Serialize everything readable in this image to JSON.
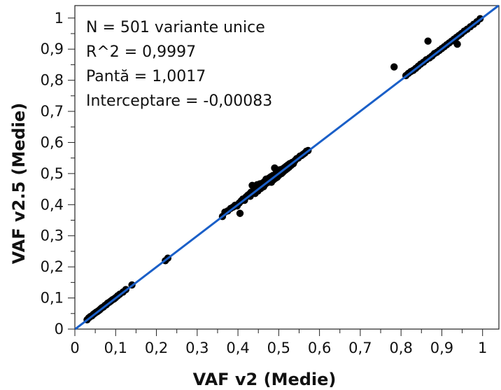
{
  "chart_data": {
    "type": "scatter",
    "xlabel": "VAF v2 (Medie)",
    "ylabel": "VAF v2.5 (Medie)",
    "xlim": [
      0,
      1.04
    ],
    "ylim": [
      0,
      1.04
    ],
    "x_ticks": [
      "0",
      "0,1",
      "0,2",
      "0,3",
      "0,4",
      "0,5",
      "0,6",
      "0,7",
      "0,8",
      "0,9",
      "1"
    ],
    "y_ticks": [
      "0",
      "0,1",
      "0,2",
      "0,3",
      "0,4",
      "0,5",
      "0,6",
      "0,7",
      "0,8",
      "0,9",
      "1"
    ],
    "grid": false,
    "annotations": [
      "N = 501 variante unice",
      "R^2 = 0,9997",
      "Pantă = 1,0017",
      "Interceptare = -0,00083"
    ],
    "fit_line": {
      "slope": 1.0017,
      "intercept": -0.00083,
      "color": "#1a5fc8"
    },
    "point_color": "#000000",
    "series": [
      {
        "points": [
          [
            0.03,
            0.03
          ],
          [
            0.034,
            0.036
          ],
          [
            0.038,
            0.04
          ],
          [
            0.042,
            0.043
          ],
          [
            0.045,
            0.047
          ],
          [
            0.048,
            0.05
          ],
          [
            0.052,
            0.054
          ],
          [
            0.055,
            0.056
          ],
          [
            0.058,
            0.059
          ],
          [
            0.061,
            0.062
          ],
          [
            0.064,
            0.066
          ],
          [
            0.067,
            0.069
          ],
          [
            0.07,
            0.071
          ],
          [
            0.074,
            0.076
          ],
          [
            0.077,
            0.078
          ],
          [
            0.08,
            0.083
          ],
          [
            0.084,
            0.086
          ],
          [
            0.088,
            0.09
          ],
          [
            0.092,
            0.094
          ],
          [
            0.096,
            0.097
          ],
          [
            0.1,
            0.101
          ],
          [
            0.105,
            0.107
          ],
          [
            0.11,
            0.112
          ],
          [
            0.118,
            0.119
          ],
          [
            0.125,
            0.127
          ],
          [
            0.14,
            0.142
          ],
          [
            0.222,
            0.22
          ],
          [
            0.228,
            0.228
          ],
          [
            0.362,
            0.362
          ],
          [
            0.368,
            0.376
          ],
          [
            0.375,
            0.38
          ],
          [
            0.382,
            0.388
          ],
          [
            0.388,
            0.392
          ],
          [
            0.393,
            0.398
          ],
          [
            0.398,
            0.396
          ],
          [
            0.403,
            0.405
          ],
          [
            0.405,
            0.372
          ],
          [
            0.408,
            0.412
          ],
          [
            0.412,
            0.418
          ],
          [
            0.416,
            0.414
          ],
          [
            0.42,
            0.425
          ],
          [
            0.424,
            0.43
          ],
          [
            0.428,
            0.434
          ],
          [
            0.43,
            0.427
          ],
          [
            0.432,
            0.44
          ],
          [
            0.435,
            0.462
          ],
          [
            0.437,
            0.442
          ],
          [
            0.44,
            0.448
          ],
          [
            0.442,
            0.436
          ],
          [
            0.444,
            0.452
          ],
          [
            0.447,
            0.464
          ],
          [
            0.449,
            0.444
          ],
          [
            0.452,
            0.458
          ],
          [
            0.454,
            0.467
          ],
          [
            0.456,
            0.452
          ],
          [
            0.458,
            0.462
          ],
          [
            0.461,
            0.47
          ],
          [
            0.463,
            0.458
          ],
          [
            0.465,
            0.474
          ],
          [
            0.467,
            0.466
          ],
          [
            0.469,
            0.482
          ],
          [
            0.471,
            0.47
          ],
          [
            0.473,
            0.478
          ],
          [
            0.475,
            0.472
          ],
          [
            0.477,
            0.486
          ],
          [
            0.479,
            0.476
          ],
          [
            0.481,
            0.49
          ],
          [
            0.482,
            0.472
          ],
          [
            0.484,
            0.488
          ],
          [
            0.486,
            0.494
          ],
          [
            0.487,
            0.48
          ],
          [
            0.489,
            0.492
          ],
          [
            0.49,
            0.518
          ],
          [
            0.491,
            0.484
          ],
          [
            0.493,
            0.496
          ],
          [
            0.494,
            0.502
          ],
          [
            0.496,
            0.488
          ],
          [
            0.497,
            0.5
          ],
          [
            0.499,
            0.506
          ],
          [
            0.5,
            0.494
          ],
          [
            0.502,
            0.512
          ],
          [
            0.503,
            0.498
          ],
          [
            0.505,
            0.508
          ],
          [
            0.507,
            0.5
          ],
          [
            0.508,
            0.514
          ],
          [
            0.51,
            0.504
          ],
          [
            0.511,
            0.516
          ],
          [
            0.513,
            0.508
          ],
          [
            0.515,
            0.52
          ],
          [
            0.517,
            0.512
          ],
          [
            0.519,
            0.524
          ],
          [
            0.521,
            0.516
          ],
          [
            0.523,
            0.528
          ],
          [
            0.525,
            0.52
          ],
          [
            0.527,
            0.532
          ],
          [
            0.53,
            0.526
          ],
          [
            0.533,
            0.536
          ],
          [
            0.536,
            0.532
          ],
          [
            0.54,
            0.542
          ],
          [
            0.544,
            0.548
          ],
          [
            0.548,
            0.55
          ],
          [
            0.552,
            0.556
          ],
          [
            0.556,
            0.558
          ],
          [
            0.56,
            0.562
          ],
          [
            0.564,
            0.566
          ],
          [
            0.568,
            0.572
          ],
          [
            0.572,
            0.574
          ],
          [
            0.783,
            0.843
          ],
          [
            0.812,
            0.815
          ],
          [
            0.818,
            0.822
          ],
          [
            0.824,
            0.828
          ],
          [
            0.83,
            0.832
          ],
          [
            0.836,
            0.838
          ],
          [
            0.842,
            0.845
          ],
          [
            0.848,
            0.852
          ],
          [
            0.855,
            0.858
          ],
          [
            0.862,
            0.866
          ],
          [
            0.866,
            0.926
          ],
          [
            0.87,
            0.872
          ],
          [
            0.876,
            0.878
          ],
          [
            0.882,
            0.886
          ],
          [
            0.888,
            0.89
          ],
          [
            0.894,
            0.896
          ],
          [
            0.9,
            0.902
          ],
          [
            0.906,
            0.908
          ],
          [
            0.912,
            0.914
          ],
          [
            0.918,
            0.92
          ],
          [
            0.924,
            0.926
          ],
          [
            0.93,
            0.932
          ],
          [
            0.936,
            0.938
          ],
          [
            0.938,
            0.916
          ],
          [
            0.942,
            0.944
          ],
          [
            0.948,
            0.95
          ],
          [
            0.955,
            0.958
          ],
          [
            0.962,
            0.964
          ],
          [
            0.97,
            0.972
          ],
          [
            0.978,
            0.98
          ],
          [
            0.986,
            0.988
          ],
          [
            0.994,
            0.998
          ]
        ]
      }
    ]
  }
}
